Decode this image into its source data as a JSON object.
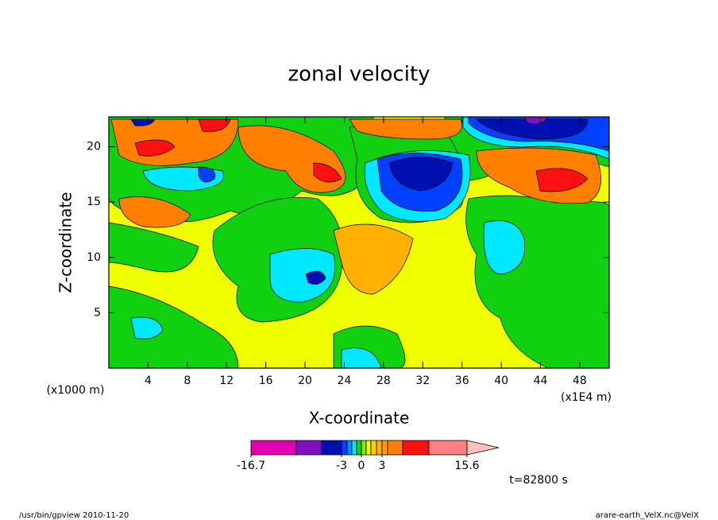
{
  "chart_data": {
    "type": "contour",
    "title": "zonal velocity",
    "xlabel": "X-coordinate",
    "ylabel": "Z-coordinate",
    "x_unit_label": "(x1E4 m)",
    "y_unit_label": "(x1000 m)",
    "xlim": [
      0,
      51
    ],
    "ylim": [
      0,
      22.7
    ],
    "xticks": [
      4,
      8,
      12,
      16,
      20,
      24,
      28,
      32,
      36,
      40,
      44,
      48
    ],
    "yticks": [
      5,
      10,
      15,
      20
    ],
    "colorbar": {
      "levels": [
        -16.7,
        -10,
        -6,
        -3,
        -2,
        -1,
        -0.5,
        0,
        0.5,
        1,
        2,
        3,
        4,
        6,
        10,
        15.6
      ],
      "colors": [
        "#e000b0",
        "#8010c0",
        "#0010b0",
        "#0040ff",
        "#0090ff",
        "#00e8ff",
        "#10d010",
        "#80f000",
        "#f0ff00",
        "#ffd000",
        "#ffb000",
        "#ff9c00",
        "#ff8000",
        "#ff1010",
        "#ff8080"
      ],
      "extend_color": "#ffc0c0",
      "ticks": [
        -16.7,
        -3,
        0,
        3,
        15.6
      ]
    },
    "time_label": "t=82800 s",
    "footer_left": "/usr/bin/gpview  2010-11-20",
    "footer_right": "arare-earth_VelX.nc@VelX"
  }
}
